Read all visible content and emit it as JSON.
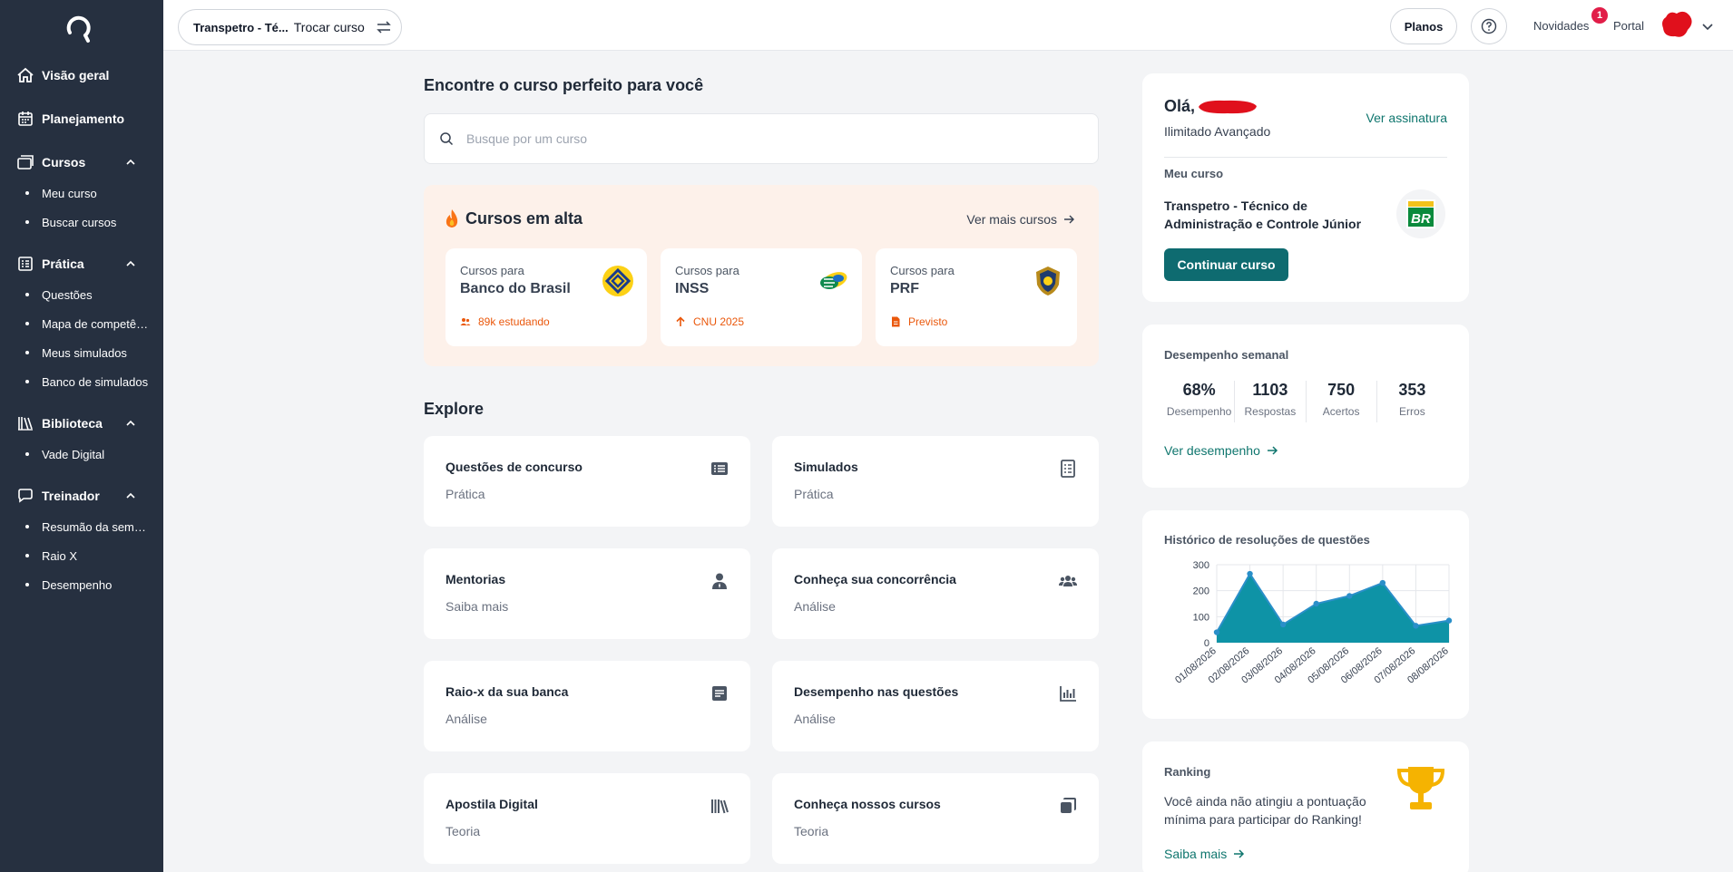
{
  "sidebar": {
    "items": [
      {
        "label": "Visão geral",
        "icon": "home-icon"
      },
      {
        "label": "Planejamento",
        "icon": "calendar-icon"
      }
    ],
    "groups": [
      {
        "label": "Cursos",
        "icon": "courses-icon",
        "children": [
          "Meu curso",
          "Buscar cursos"
        ]
      },
      {
        "label": "Prática",
        "icon": "checklist-icon",
        "children": [
          "Questões",
          "Mapa de competências",
          "Meus simulados",
          "Banco de simulados"
        ]
      },
      {
        "label": "Biblioteca",
        "icon": "books-icon",
        "children": [
          "Vade Digital"
        ]
      },
      {
        "label": "Treinador",
        "icon": "chat-icon",
        "children": [
          "Resumão da semana",
          "Raio X",
          "Desempenho"
        ]
      }
    ]
  },
  "topbar": {
    "course_short": "Transpetro - Té...",
    "switch_label": "Trocar curso",
    "planos": "Planos",
    "novidades": "Novidades",
    "novidades_badge": "1",
    "portal": "Portal"
  },
  "main": {
    "heading": "Encontre o curso perfeito para você",
    "search_placeholder": "Busque por um curso",
    "trending": {
      "title": "Cursos em alta",
      "more": "Ver mais cursos",
      "cards": [
        {
          "for": "Cursos para",
          "name": "Banco do Brasil",
          "meta": "89k estudando",
          "meta_icon": "people-icon"
        },
        {
          "for": "Cursos para",
          "name": "INSS",
          "meta": "CNU 2025",
          "meta_icon": "arrow-up-icon"
        },
        {
          "for": "Cursos para",
          "name": "PRF",
          "meta": "Previsto",
          "meta_icon": "document-icon"
        }
      ]
    },
    "explore_title": "Explore",
    "explore": [
      {
        "title": "Questões de concurso",
        "subtitle": "Prática",
        "icon": "list-icon"
      },
      {
        "title": "Simulados",
        "subtitle": "Prática",
        "icon": "checklist-doc-icon"
      },
      {
        "title": "Mentorias",
        "subtitle": "Saiba mais",
        "icon": "user-tie-icon"
      },
      {
        "title": "Conheça sua concorrência",
        "subtitle": "Análise",
        "icon": "users-icon"
      },
      {
        "title": "Raio-x da sua banca",
        "subtitle": "Análise",
        "icon": "article-icon"
      },
      {
        "title": "Desempenho nas questões",
        "subtitle": "Análise",
        "icon": "bar-chart-icon"
      },
      {
        "title": "Apostila Digital",
        "subtitle": "Teoria",
        "icon": "books-icon"
      },
      {
        "title": "Conheça nossos cursos",
        "subtitle": "Teoria",
        "icon": "copy-icon"
      }
    ]
  },
  "right": {
    "greeting": "Olá,",
    "plan": "Ilimitado Avançado",
    "subscription_link": "Ver assinatura",
    "my_course_label": "Meu curso",
    "my_course_name": "Transpetro - Técnico de Administração e Controle Júnior",
    "continue_button": "Continuar curso",
    "weekly": {
      "title": "Desempenho semanal",
      "stats": [
        {
          "value": "68%",
          "label": "Desempenho"
        },
        {
          "value": "1103",
          "label": "Respostas"
        },
        {
          "value": "750",
          "label": "Acertos"
        },
        {
          "value": "353",
          "label": "Erros"
        }
      ],
      "link": "Ver desempenho"
    },
    "history_title": "Histórico de resoluções de questões",
    "ranking": {
      "title": "Ranking",
      "text": "Você ainda não atingiu a pontuação mínima para participar do Ranking!",
      "link": "Saiba mais"
    }
  },
  "chart_data": {
    "type": "area",
    "x": [
      "01/08/2026",
      "02/08/2026",
      "03/08/2026",
      "04/08/2026",
      "05/08/2026",
      "06/08/2026",
      "07/08/2026",
      "08/08/2026"
    ],
    "values": [
      40,
      265,
      70,
      150,
      180,
      230,
      65,
      85
    ],
    "yticks": [
      0,
      100,
      200,
      300
    ],
    "ylim": [
      0,
      300
    ],
    "color": "#0e93a6",
    "grid": true
  },
  "colors": {
    "sidebar_bg": "#263040",
    "accent_teal": "#0e6b70",
    "trending_bg": "#fdf1ea",
    "orange": "#ea580c",
    "badge": "#e11d48"
  }
}
